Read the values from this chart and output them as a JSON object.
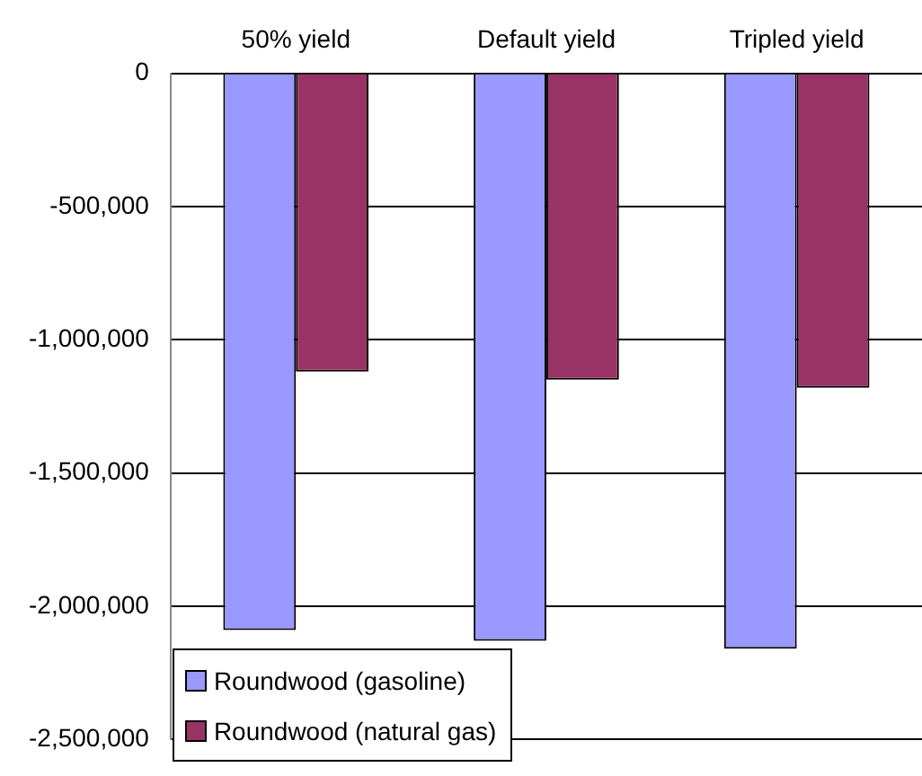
{
  "chart_data": {
    "type": "bar",
    "categories": [
      "50% yield",
      "Default yield",
      "Tripled yield"
    ],
    "series": [
      {
        "name": "Roundwood (gasoline)",
        "color": "#9999ff",
        "values": [
          -2090000,
          -2130000,
          -2160000
        ]
      },
      {
        "name": "Roundwood (natural gas)",
        "color": "#993366",
        "values": [
          -1120000,
          -1150000,
          -1180000
        ]
      }
    ],
    "ylim": [
      -2500000,
      0
    ],
    "yticks": [
      {
        "value": 0,
        "label": "0"
      },
      {
        "value": -500000,
        "label": "-500,000"
      },
      {
        "value": -1000000,
        "label": "-1,000,000"
      },
      {
        "value": -1500000,
        "label": "-1,500,000"
      },
      {
        "value": -2000000,
        "label": "-2,000,000"
      },
      {
        "value": -2500000,
        "label": "-2,500,000"
      }
    ],
    "grid": "y",
    "legend": "bottom left"
  }
}
